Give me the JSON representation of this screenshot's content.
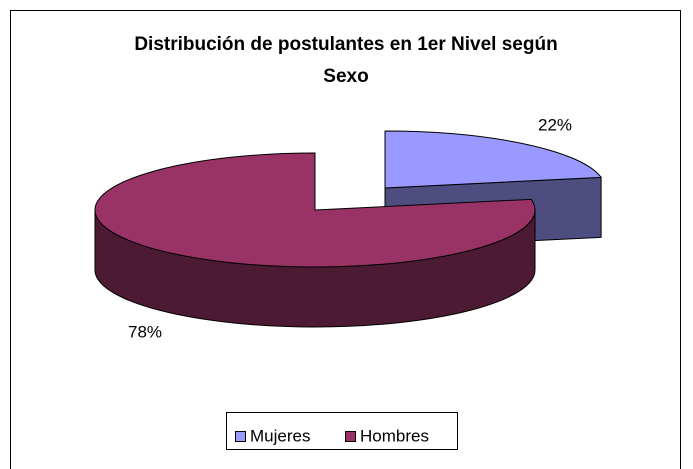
{
  "chart_data": {
    "type": "pie",
    "title": "Distribución de postulantes en 1er Nivel según Sexo",
    "categories": [
      "Mujeres",
      "Hombres"
    ],
    "values": [
      22,
      78
    ],
    "value_labels": [
      "22%",
      "78%"
    ],
    "colors": [
      "#9999ff",
      "#993366"
    ],
    "legend": "bottom"
  }
}
